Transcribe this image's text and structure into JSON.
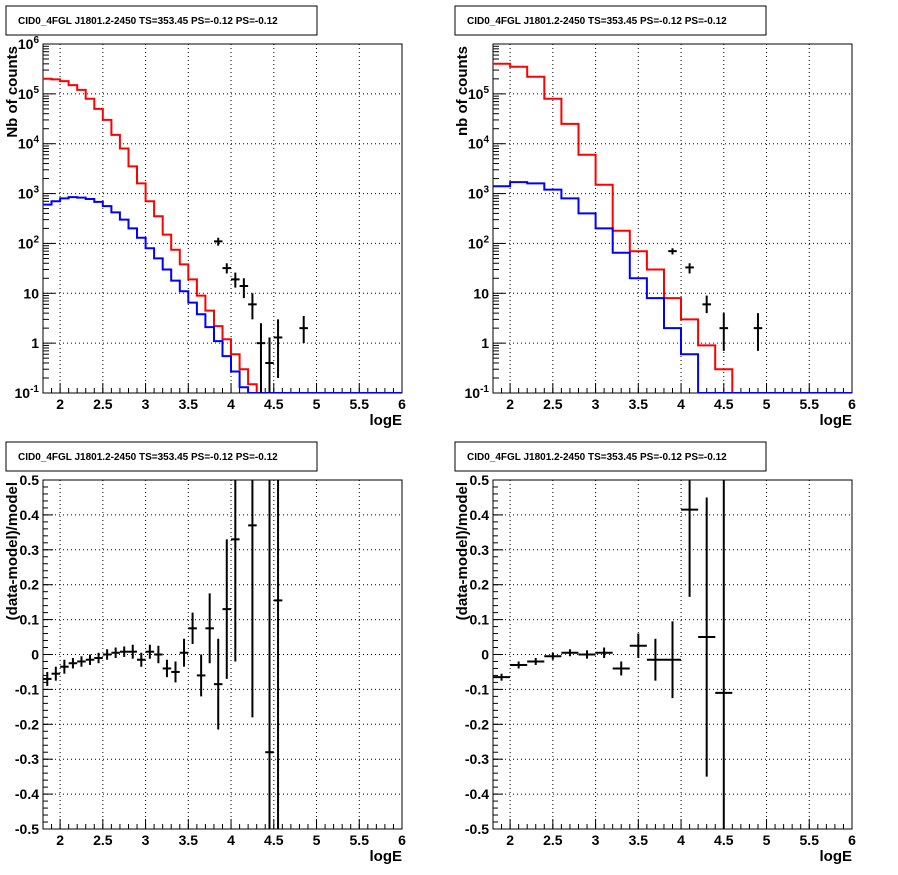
{
  "title_text": "CID0_4FGL J1801.2-2450 TS=353.45 PS=-0.12 PS=-0.12",
  "colors": {
    "model": "#ff0000",
    "component": "#0000ff",
    "data": "#000000",
    "grid": "#000000"
  },
  "chart_data": [
    {
      "type": "line",
      "title": "CID0_4FGL J1801.2-2450 TS=353.45 PS=-0.12 PS=-0.12",
      "xlabel": "logE",
      "ylabel": "Nb of counts",
      "xlim": [
        1.8,
        6.0
      ],
      "ylim": [
        0.1,
        1000000
      ],
      "log_y": true,
      "grid": true,
      "xticks": [
        "2",
        "2.5",
        "3",
        "3.5",
        "4",
        "4.5",
        "5",
        "5.5",
        "6"
      ],
      "yticks": [
        "10^-1",
        "1",
        "10",
        "10^2",
        "10^3",
        "10^4",
        "10^5",
        "10^6"
      ],
      "bin_edges": [
        1.8,
        1.9,
        2.0,
        2.1,
        2.2,
        2.3,
        2.4,
        2.5,
        2.6,
        2.7,
        2.8,
        2.9,
        3.0,
        3.1,
        3.2,
        3.3,
        3.4,
        3.5,
        3.6,
        3.7,
        3.8,
        3.9,
        4.0,
        4.1,
        4.2,
        4.3,
        4.4,
        4.5,
        4.6,
        4.7,
        4.8,
        4.9,
        5.0,
        5.1,
        5.2,
        5.3,
        5.4,
        5.5,
        5.6,
        5.7,
        5.8,
        5.9,
        6.0
      ],
      "series": [
        {
          "name": "",
          "style": "step",
          "color": "#ff0000",
          "values": [
            200000,
            195000,
            180000,
            150000,
            120000,
            80000,
            50000,
            30000,
            15000,
            8000,
            3500,
            1600,
            700,
            350,
            150,
            75,
            38,
            19,
            9,
            4.5,
            2.2,
            1.2,
            0.6,
            0.3,
            0.15,
            0.1,
            0.1,
            0.1,
            0.1,
            0.1,
            0.1,
            0.1,
            0.1,
            0.1,
            0.1,
            0.1,
            0.1,
            0.1,
            0.1,
            0.1,
            0.1,
            0.1
          ]
        },
        {
          "name": "",
          "style": "step",
          "color": "#0000ff",
          "values": [
            600,
            700,
            800,
            850,
            830,
            780,
            680,
            560,
            420,
            300,
            200,
            130,
            80,
            50,
            30,
            18,
            11,
            6.5,
            3.8,
            2.1,
            1.1,
            0.55,
            0.27,
            0.13,
            0.1,
            0.1,
            0.1,
            0.1,
            0.1,
            0.1,
            0.1,
            0.1,
            0.1,
            0.1,
            0.1,
            0.1,
            0.1,
            0.1,
            0.1,
            0.1,
            0.1,
            0.1
          ]
        },
        {
          "name": "",
          "style": "errorbars",
          "color": "#000000",
          "points": [
            {
              "x": 3.85,
              "y": 110,
              "lo": 90,
              "hi": 130
            },
            {
              "x": 3.95,
              "y": 32,
              "lo": 25,
              "hi": 40
            },
            {
              "x": 4.05,
              "y": 19,
              "lo": 13,
              "hi": 26
            },
            {
              "x": 4.15,
              "y": 14,
              "lo": 8,
              "hi": 20
            },
            {
              "x": 4.25,
              "y": 6,
              "lo": 3,
              "hi": 10
            },
            {
              "x": 4.35,
              "y": 1,
              "lo": 0.1,
              "hi": 2.5
            },
            {
              "x": 4.45,
              "y": 0.4,
              "lo": 0.1,
              "hi": 1.3
            },
            {
              "x": 4.55,
              "y": 1.3,
              "lo": 0.2,
              "hi": 3
            },
            {
              "x": 4.85,
              "y": 2,
              "lo": 1,
              "hi": 3.5
            }
          ]
        }
      ]
    },
    {
      "type": "line",
      "title": "CID0_4FGL J1801.2-2450 TS=353.45 PS=-0.12 PS=-0.12",
      "xlabel": "logE",
      "ylabel": "nb of counts",
      "xlim": [
        1.8,
        6.0
      ],
      "ylim": [
        0.1,
        1000000
      ],
      "log_y": true,
      "grid": true,
      "xticks": [
        "2",
        "2.5",
        "3",
        "3.5",
        "4",
        "4.5",
        "5",
        "5.5",
        "6"
      ],
      "yticks": [
        "10^-1",
        "1",
        "10",
        "10^2",
        "10^3",
        "10^4",
        "10^5"
      ],
      "bin_edges": [
        1.8,
        2.0,
        2.2,
        2.4,
        2.6,
        2.8,
        3.0,
        3.2,
        3.4,
        3.6,
        3.8,
        4.0,
        4.2,
        4.4,
        4.6,
        4.8,
        5.0,
        5.2,
        5.4,
        5.6,
        5.8,
        6.0
      ],
      "series": [
        {
          "name": "",
          "style": "step",
          "color": "#ff0000",
          "values": [
            400000,
            350000,
            220000,
            80000,
            25000,
            6000,
            1500,
            180,
            70,
            30,
            8,
            3,
            0.9,
            0.3,
            0.1,
            0.1,
            0.1,
            0.1,
            0.1,
            0.1,
            0.1
          ]
        },
        {
          "name": "",
          "style": "step",
          "color": "#0000ff",
          "values": [
            1400,
            1700,
            1600,
            1200,
            800,
            400,
            200,
            65,
            20,
            8,
            2,
            0.6,
            0.1,
            0.1,
            0.1,
            0.1,
            0.1,
            0.1,
            0.1,
            0.1,
            0.1
          ]
        },
        {
          "name": "",
          "style": "errorbars",
          "color": "#000000",
          "points": [
            {
              "x": 3.9,
              "y": 70,
              "lo": 60,
              "hi": 80
            },
            {
              "x": 4.1,
              "y": 33,
              "lo": 25,
              "hi": 40
            },
            {
              "x": 4.3,
              "y": 6,
              "lo": 4,
              "hi": 9
            },
            {
              "x": 4.5,
              "y": 2,
              "lo": 0.7,
              "hi": 4
            },
            {
              "x": 4.9,
              "y": 2,
              "lo": 0.7,
              "hi": 4
            }
          ]
        }
      ]
    },
    {
      "type": "scatter",
      "title": "CID0_4FGL J1801.2-2450 TS=353.45 PS=-0.12 PS=-0.12",
      "xlabel": "logE",
      "ylabel": "(data-model)/model",
      "xlim": [
        1.8,
        6.0
      ],
      "ylim": [
        -0.5,
        0.5
      ],
      "grid": true,
      "xticks": [
        "2",
        "2.5",
        "3",
        "3.5",
        "4",
        "4.5",
        "5",
        "5.5",
        "6"
      ],
      "yticks": [
        "-0.5",
        "-0.4",
        "-0.3",
        "-0.2",
        "-0.1",
        "0",
        "0.1",
        "0.2",
        "0.3",
        "0.4",
        "0.5"
      ],
      "bin_halfwidth": 0.05,
      "series": [
        {
          "name": "",
          "style": "errorbars",
          "color": "#000000",
          "points": [
            {
              "x": 1.85,
              "y": -0.07,
              "err": 0.02
            },
            {
              "x": 1.95,
              "y": -0.055,
              "err": 0.02
            },
            {
              "x": 2.05,
              "y": -0.035,
              "err": 0.02
            },
            {
              "x": 2.15,
              "y": -0.025,
              "err": 0.015
            },
            {
              "x": 2.25,
              "y": -0.02,
              "err": 0.015
            },
            {
              "x": 2.35,
              "y": -0.015,
              "err": 0.015
            },
            {
              "x": 2.45,
              "y": -0.01,
              "err": 0.015
            },
            {
              "x": 2.55,
              "y": 0.0,
              "err": 0.015
            },
            {
              "x": 2.65,
              "y": 0.005,
              "err": 0.015
            },
            {
              "x": 2.75,
              "y": 0.008,
              "err": 0.015
            },
            {
              "x": 2.85,
              "y": 0.008,
              "err": 0.02
            },
            {
              "x": 2.95,
              "y": -0.015,
              "err": 0.02
            },
            {
              "x": 3.05,
              "y": 0.008,
              "err": 0.02
            },
            {
              "x": 3.15,
              "y": 0.0,
              "err": 0.025
            },
            {
              "x": 3.25,
              "y": -0.04,
              "err": 0.025
            },
            {
              "x": 3.35,
              "y": -0.05,
              "err": 0.03
            },
            {
              "x": 3.45,
              "y": 0.005,
              "err": 0.04
            },
            {
              "x": 3.55,
              "y": 0.075,
              "err": 0.045
            },
            {
              "x": 3.65,
              "y": -0.06,
              "err": 0.06
            },
            {
              "x": 3.75,
              "y": 0.075,
              "err": 0.1
            },
            {
              "x": 3.85,
              "y": -0.085,
              "err": 0.13
            },
            {
              "x": 3.95,
              "y": 0.13,
              "err": 0.2
            },
            {
              "x": 4.05,
              "y": 0.33,
              "err": 0.35
            },
            {
              "x": 4.25,
              "y": 0.37,
              "err": 0.55
            },
            {
              "x": 4.45,
              "y": -0.28,
              "err": 0.9
            },
            {
              "x": 4.55,
              "y": 0.155,
              "err": 0.8
            }
          ]
        }
      ]
    },
    {
      "type": "scatter",
      "title": "CID0_4FGL J1801.2-2450 TS=353.45 PS=-0.12 PS=-0.12",
      "xlabel": "logE",
      "ylabel": "(data-model)/model",
      "xlim": [
        1.8,
        6.0
      ],
      "ylim": [
        -0.5,
        0.5
      ],
      "grid": true,
      "xticks": [
        "2",
        "2.5",
        "3",
        "3.5",
        "4",
        "4.5",
        "5",
        "5.5",
        "6"
      ],
      "yticks": [
        "-0.5",
        "-0.4",
        "-0.3",
        "-0.2",
        "-0.1",
        "0",
        "0.1",
        "0.2",
        "0.3",
        "0.4",
        "0.5"
      ],
      "bin_halfwidth": 0.1,
      "series": [
        {
          "name": "",
          "style": "errorbars",
          "color": "#000000",
          "points": [
            {
              "x": 1.9,
              "y": -0.065,
              "err": 0.01
            },
            {
              "x": 2.1,
              "y": -0.03,
              "err": 0.01
            },
            {
              "x": 2.3,
              "y": -0.02,
              "err": 0.01
            },
            {
              "x": 2.5,
              "y": -0.005,
              "err": 0.01
            },
            {
              "x": 2.7,
              "y": 0.005,
              "err": 0.01
            },
            {
              "x": 2.9,
              "y": 0.0,
              "err": 0.012
            },
            {
              "x": 3.1,
              "y": 0.005,
              "err": 0.015
            },
            {
              "x": 3.3,
              "y": -0.04,
              "err": 0.02
            },
            {
              "x": 3.5,
              "y": 0.025,
              "err": 0.035
            },
            {
              "x": 3.7,
              "y": -0.015,
              "err": 0.06
            },
            {
              "x": 3.9,
              "y": -0.015,
              "err": 0.11
            },
            {
              "x": 4.1,
              "y": 0.415,
              "err": 0.25
            },
            {
              "x": 4.3,
              "y": 0.05,
              "err": 0.4
            },
            {
              "x": 4.5,
              "y": -0.11,
              "err": 0.7
            }
          ]
        }
      ]
    }
  ]
}
